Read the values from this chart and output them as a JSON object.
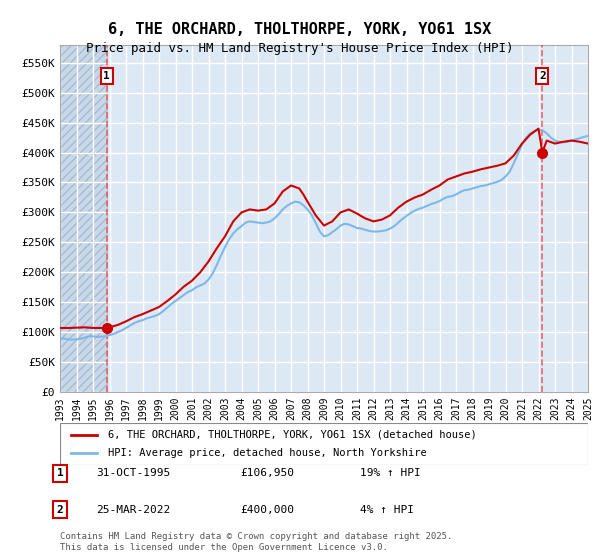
{
  "title_line1": "6, THE ORCHARD, THOLTHORPE, YORK, YO61 1SX",
  "title_line2": "Price paid vs. HM Land Registry's House Price Index (HPI)",
  "ylabel": "",
  "background_plot": "#dce9f5",
  "background_hatch": "#c8d8eb",
  "grid_color": "#ffffff",
  "line1_color": "#cc0000",
  "line2_color": "#7fb8e8",
  "ylim": [
    0,
    580000
  ],
  "yticks": [
    0,
    50000,
    100000,
    150000,
    200000,
    250000,
    300000,
    350000,
    400000,
    450000,
    500000,
    550000
  ],
  "ytick_labels": [
    "£0",
    "£50K",
    "£100K",
    "£150K",
    "£200K",
    "£250K",
    "£300K",
    "£350K",
    "£400K",
    "£450K",
    "£500K",
    "£550K"
  ],
  "xmin_year": 1993,
  "xmax_year": 2025,
  "xticks": [
    1993,
    1994,
    1995,
    1996,
    1997,
    1998,
    1999,
    2000,
    2001,
    2002,
    2003,
    2004,
    2005,
    2006,
    2007,
    2008,
    2009,
    2010,
    2011,
    2012,
    2013,
    2014,
    2015,
    2016,
    2017,
    2018,
    2019,
    2020,
    2021,
    2022,
    2023,
    2024,
    2025
  ],
  "sale1_year": 1995.83,
  "sale1_price": 106950,
  "sale2_year": 2022.23,
  "sale2_price": 400000,
  "legend_label1": "6, THE ORCHARD, THOLTHORPE, YORK, YO61 1SX (detached house)",
  "legend_label2": "HPI: Average price, detached house, North Yorkshire",
  "note1_box": "1",
  "note1_date": "31-OCT-1995",
  "note1_price": "£106,950",
  "note1_hpi": "19% ↑ HPI",
  "note2_box": "2",
  "note2_date": "25-MAR-2022",
  "note2_price": "£400,000",
  "note2_hpi": "4% ↑ HPI",
  "footer": "Contains HM Land Registry data © Crown copyright and database right 2025.\nThis data is licensed under the Open Government Licence v3.0.",
  "hpi_data": {
    "years": [
      1993.0,
      1993.25,
      1993.5,
      1993.75,
      1994.0,
      1994.25,
      1994.5,
      1994.75,
      1995.0,
      1995.25,
      1995.5,
      1995.75,
      1996.0,
      1996.25,
      1996.5,
      1996.75,
      1997.0,
      1997.25,
      1997.5,
      1997.75,
      1998.0,
      1998.25,
      1998.5,
      1998.75,
      1999.0,
      1999.25,
      1999.5,
      1999.75,
      2000.0,
      2000.25,
      2000.5,
      2000.75,
      2001.0,
      2001.25,
      2001.5,
      2001.75,
      2002.0,
      2002.25,
      2002.5,
      2002.75,
      2003.0,
      2003.25,
      2003.5,
      2003.75,
      2004.0,
      2004.25,
      2004.5,
      2004.75,
      2005.0,
      2005.25,
      2005.5,
      2005.75,
      2006.0,
      2006.25,
      2006.5,
      2006.75,
      2007.0,
      2007.25,
      2007.5,
      2007.75,
      2008.0,
      2008.25,
      2008.5,
      2008.75,
      2009.0,
      2009.25,
      2009.5,
      2009.75,
      2010.0,
      2010.25,
      2010.5,
      2010.75,
      2011.0,
      2011.25,
      2011.5,
      2011.75,
      2012.0,
      2012.25,
      2012.5,
      2012.75,
      2013.0,
      2013.25,
      2013.5,
      2013.75,
      2014.0,
      2014.25,
      2014.5,
      2014.75,
      2015.0,
      2015.25,
      2015.5,
      2015.75,
      2016.0,
      2016.25,
      2016.5,
      2016.75,
      2017.0,
      2017.25,
      2017.5,
      2017.75,
      2018.0,
      2018.25,
      2018.5,
      2018.75,
      2019.0,
      2019.25,
      2019.5,
      2019.75,
      2020.0,
      2020.25,
      2020.5,
      2020.75,
      2021.0,
      2021.25,
      2021.5,
      2021.75,
      2022.0,
      2022.25,
      2022.5,
      2022.75,
      2023.0,
      2023.25,
      2023.5,
      2023.75,
      2024.0,
      2024.25,
      2024.5,
      2024.75,
      2025.0
    ],
    "values": [
      89000,
      89500,
      88000,
      87500,
      88000,
      89000,
      91000,
      93000,
      93000,
      92000,
      92500,
      93000,
      95000,
      97000,
      100000,
      103000,
      107000,
      111000,
      115000,
      118000,
      120000,
      123000,
      125000,
      127000,
      130000,
      135000,
      141000,
      147000,
      152000,
      157000,
      162000,
      167000,
      170000,
      175000,
      178000,
      181000,
      188000,
      198000,
      212000,
      228000,
      242000,
      255000,
      265000,
      272000,
      277000,
      283000,
      285000,
      284000,
      283000,
      282000,
      283000,
      285000,
      290000,
      297000,
      305000,
      311000,
      315000,
      318000,
      317000,
      312000,
      305000,
      296000,
      282000,
      268000,
      260000,
      262000,
      267000,
      272000,
      278000,
      281000,
      280000,
      277000,
      274000,
      273000,
      271000,
      269000,
      268000,
      268000,
      269000,
      270000,
      273000,
      277000,
      283000,
      289000,
      294000,
      299000,
      303000,
      306000,
      308000,
      311000,
      314000,
      316000,
      319000,
      323000,
      326000,
      327000,
      330000,
      334000,
      337000,
      338000,
      340000,
      342000,
      344000,
      345000,
      347000,
      349000,
      351000,
      354000,
      360000,
      368000,
      382000,
      398000,
      413000,
      425000,
      432000,
      436000,
      438000,
      437000,
      432000,
      425000,
      420000,
      418000,
      417000,
      418000,
      420000,
      422000,
      424000,
      426000,
      428000
    ]
  },
  "house_data": {
    "years": [
      1993.0,
      1993.5,
      1994.0,
      1994.5,
      1995.0,
      1995.5,
      1995.83,
      1996.0,
      1996.5,
      1997.0,
      1997.5,
      1998.0,
      1998.5,
      1999.0,
      1999.5,
      2000.0,
      2000.5,
      2001.0,
      2001.5,
      2002.0,
      2002.5,
      2003.0,
      2003.5,
      2004.0,
      2004.5,
      2005.0,
      2005.5,
      2006.0,
      2006.5,
      2007.0,
      2007.5,
      2007.75,
      2008.0,
      2008.5,
      2009.0,
      2009.5,
      2010.0,
      2010.5,
      2011.0,
      2011.5,
      2012.0,
      2012.5,
      2013.0,
      2013.5,
      2014.0,
      2014.5,
      2015.0,
      2015.5,
      2016.0,
      2016.5,
      2017.0,
      2017.5,
      2018.0,
      2018.5,
      2019.0,
      2019.5,
      2020.0,
      2020.5,
      2021.0,
      2021.5,
      2022.0,
      2022.23,
      2022.5,
      2023.0,
      2023.5,
      2024.0,
      2024.5,
      2025.0
    ],
    "values": [
      106950,
      106950,
      107500,
      108000,
      107000,
      106950,
      106950,
      108000,
      112000,
      118000,
      125000,
      130000,
      136000,
      142000,
      152000,
      163000,
      176000,
      186000,
      200000,
      218000,
      240000,
      260000,
      285000,
      300000,
      305000,
      303000,
      305000,
      315000,
      335000,
      345000,
      340000,
      330000,
      318000,
      295000,
      278000,
      285000,
      300000,
      305000,
      298000,
      290000,
      285000,
      288000,
      295000,
      308000,
      318000,
      325000,
      330000,
      338000,
      345000,
      355000,
      360000,
      365000,
      368000,
      372000,
      375000,
      378000,
      382000,
      395000,
      415000,
      430000,
      440000,
      400000,
      420000,
      415000,
      418000,
      420000,
      418000,
      415000
    ]
  }
}
